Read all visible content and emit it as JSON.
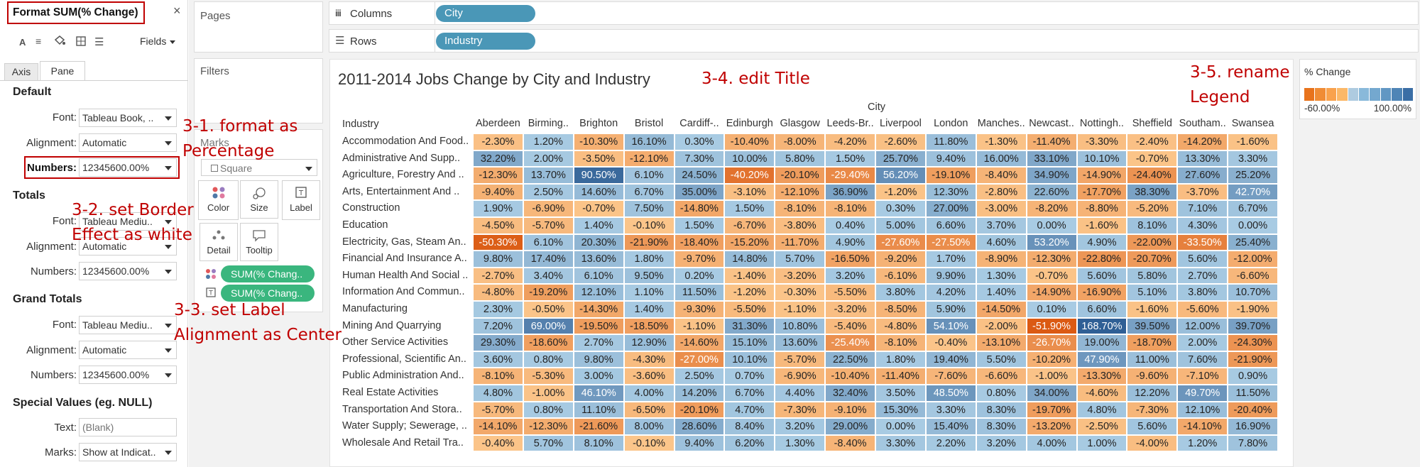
{
  "format_pane": {
    "title": "Format SUM(% Change)",
    "fields_label": "Fields",
    "tabs": [
      "Axis",
      "Pane"
    ],
    "default": {
      "heading": "Default",
      "font_label": "Font:",
      "font_value": "Tableau Book, ..",
      "alignment_label": "Alignment:",
      "alignment_value": "Automatic",
      "numbers_label": "Numbers:",
      "numbers_value": "12345600.00%"
    },
    "totals": {
      "heading": "Totals",
      "font_label": "Font:",
      "font_value": "Tableau Mediu..",
      "alignment_label": "Alignment:",
      "alignment_value": "Automatic",
      "numbers_label": "Numbers:",
      "numbers_value": "12345600.00%"
    },
    "grand_totals": {
      "heading": "Grand Totals",
      "font_label": "Font:",
      "font_value": "Tableau Mediu..",
      "alignment_label": "Alignment:",
      "alignment_value": "Automatic",
      "numbers_label": "Numbers:",
      "numbers_value": "12345600.00%"
    },
    "special": {
      "heading": "Special Values (eg. NULL)",
      "text_label": "Text:",
      "text_placeholder": "(Blank)",
      "marks_label": "Marks:",
      "marks_value": "Show at Indicat.."
    }
  },
  "shelves": {
    "pages": "Pages",
    "filters": "Filters",
    "marks": "Marks",
    "mark_type": "Square",
    "cards": {
      "color": "Color",
      "size": "Size",
      "label": "Label",
      "detail": "Detail",
      "tooltip": "Tooltip"
    },
    "mark_fields": [
      "SUM(% Chang..",
      "SUM(% Chang.."
    ],
    "columns_label": "Columns",
    "columns_pill": "City",
    "rows_label": "Rows",
    "rows_pill": "Industry"
  },
  "viz": {
    "title": "2011-2014 Jobs Change by City and Industry",
    "col_axis_title": "City",
    "row_axis_title": "Industry"
  },
  "legend": {
    "title": "% Change",
    "min": "-60.00%",
    "max": "100.00%",
    "colors": [
      "#e8731c",
      "#f08c35",
      "#f9a24d",
      "#fbb868",
      "#aecbe0",
      "#89b9da",
      "#74a8cf",
      "#6197c3",
      "#4f85b6",
      "#3a6ea5"
    ]
  },
  "annotations": {
    "a1": "3-1. format as",
    "a1b": "Percentage",
    "a2": "3-2. set Border",
    "a2b": "Effect as white",
    "a3": "3-3. set Label",
    "a3b": "Alignment as Center",
    "a4": "3-4. edit Title",
    "a5": "3-5. rename",
    "a5b": "Legend"
  },
  "chart_data": {
    "type": "heatmap",
    "title": "2011-2014 Jobs Change by City and Industry",
    "xlabel": "City",
    "ylabel": "Industry",
    "legend_title": "% Change",
    "color_range": [
      -60,
      100
    ],
    "x": [
      "Aberdeen",
      "Birming..",
      "Brighton",
      "Bristol",
      "Cardiff-..",
      "Edinburgh",
      "Glasgow",
      "Leeds-Br..",
      "Liverpool",
      "London",
      "Manches..",
      "Newcast..",
      "Nottingh..",
      "Sheffield",
      "Southam..",
      "Swansea"
    ],
    "y": [
      "Accommodation And Food..",
      "Administrative And Supp..",
      "Agriculture, Forestry And ..",
      "Arts, Entertainment And ..",
      "Construction",
      "Education",
      "Electricity, Gas, Steam An..",
      "Financial And Insurance A..",
      "Human Health And Social ..",
      "Information And Commun..",
      "Manufacturing",
      "Mining And Quarrying",
      "Other Service Activities",
      "Professional, Scientific An..",
      "Public Administration And..",
      "Real Estate Activities",
      "Transportation And Stora..",
      "Water Supply; Sewerage, ..",
      "Wholesale And Retail Tra.."
    ],
    "values": [
      [
        -2.3,
        1.2,
        -10.3,
        16.1,
        0.3,
        -10.4,
        -8.0,
        -4.2,
        -2.6,
        11.8,
        -1.3,
        -11.4,
        -3.3,
        -2.4,
        -14.2,
        -1.6
      ],
      [
        32.2,
        2.0,
        -3.5,
        -12.1,
        7.3,
        10.0,
        5.8,
        1.5,
        25.7,
        9.4,
        16.0,
        33.1,
        10.1,
        -0.7,
        13.3,
        3.3
      ],
      [
        -12.3,
        13.7,
        90.5,
        6.1,
        24.5,
        -40.2,
        -20.1,
        -29.4,
        56.2,
        -19.1,
        -8.4,
        34.9,
        -14.9,
        -24.4,
        27.6,
        25.2
      ],
      [
        -9.4,
        2.5,
        14.6,
        6.7,
        35.0,
        -3.1,
        -12.1,
        36.9,
        -1.2,
        12.3,
        -2.8,
        22.6,
        -17.7,
        38.3,
        -3.7,
        42.7
      ],
      [
        1.9,
        -6.9,
        -0.7,
        7.5,
        -14.8,
        1.5,
        -8.1,
        -8.1,
        0.3,
        27.0,
        -3.0,
        -8.2,
        -8.8,
        -5.2,
        7.1,
        6.7
      ],
      [
        -4.5,
        -5.7,
        1.4,
        -0.1,
        1.5,
        -6.7,
        -3.8,
        0.4,
        5.0,
        6.6,
        3.7,
        0.0,
        -1.6,
        8.1,
        4.3,
        0.0
      ],
      [
        -50.3,
        6.1,
        20.3,
        -21.9,
        -18.4,
        -15.2,
        -11.7,
        4.9,
        -27.6,
        -27.5,
        4.6,
        53.2,
        4.9,
        -22.0,
        -33.5,
        25.4
      ],
      [
        9.8,
        17.4,
        13.6,
        1.8,
        -9.7,
        14.8,
        5.7,
        -16.5,
        -9.2,
        1.7,
        -8.9,
        -12.3,
        -22.8,
        -20.7,
        5.6,
        -12.0
      ],
      [
        -2.7,
        3.4,
        6.1,
        9.5,
        0.2,
        -1.4,
        -3.2,
        3.2,
        -6.1,
        9.9,
        1.3,
        -0.7,
        5.6,
        5.8,
        2.7,
        -6.6
      ],
      [
        -4.8,
        -19.2,
        12.1,
        1.1,
        11.5,
        -1.2,
        -0.3,
        -5.5,
        3.8,
        4.2,
        1.4,
        -14.9,
        -16.9,
        5.1,
        3.8,
        10.7
      ],
      [
        2.3,
        -0.5,
        -14.3,
        1.4,
        -9.3,
        -5.5,
        -1.1,
        -3.2,
        -8.5,
        5.9,
        -14.5,
        0.1,
        6.6,
        -1.6,
        -5.6,
        -1.9
      ],
      [
        7.2,
        69.0,
        -19.5,
        -18.5,
        -1.1,
        31.3,
        10.8,
        -5.4,
        -4.8,
        54.1,
        -2.0,
        -51.9,
        168.7,
        39.5,
        12.0,
        39.7
      ],
      [
        29.3,
        -18.6,
        2.7,
        12.9,
        -14.6,
        15.1,
        13.6,
        -25.4,
        -8.1,
        -0.4,
        -13.1,
        -26.7,
        19.0,
        -18.7,
        2.0,
        -24.3
      ],
      [
        3.6,
        0.8,
        9.8,
        -4.3,
        -27.0,
        10.1,
        -5.7,
        22.5,
        1.8,
        19.4,
        5.5,
        -10.2,
        47.9,
        11.0,
        7.6,
        -21.9
      ],
      [
        -8.1,
        -5.3,
        3.0,
        -3.6,
        2.5,
        0.7,
        -6.9,
        -10.4,
        -11.4,
        -7.6,
        -6.6,
        -1.0,
        -13.3,
        -9.6,
        -7.1,
        0.9
      ],
      [
        4.8,
        -1.0,
        46.1,
        4.0,
        14.2,
        6.7,
        4.4,
        32.4,
        3.5,
        48.5,
        0.8,
        34.0,
        -4.6,
        12.2,
        49.7,
        11.5
      ],
      [
        -5.7,
        0.8,
        11.1,
        -6.5,
        -20.1,
        4.7,
        -7.3,
        -9.1,
        15.3,
        3.3,
        8.3,
        -19.7,
        4.8,
        -7.3,
        12.1,
        -20.4
      ],
      [
        -14.1,
        -12.3,
        -21.6,
        8.0,
        28.6,
        8.4,
        3.2,
        29.0,
        0.0,
        15.4,
        8.3,
        -13.2,
        -2.5,
        5.6,
        -14.1,
        16.9
      ],
      [
        -0.4,
        5.7,
        8.1,
        -0.1,
        9.4,
        6.2,
        1.3,
        -8.4,
        3.3,
        2.2,
        3.2,
        4.0,
        1.0,
        -4.0,
        1.2,
        7.8
      ]
    ],
    "value_format": "0.00%"
  }
}
